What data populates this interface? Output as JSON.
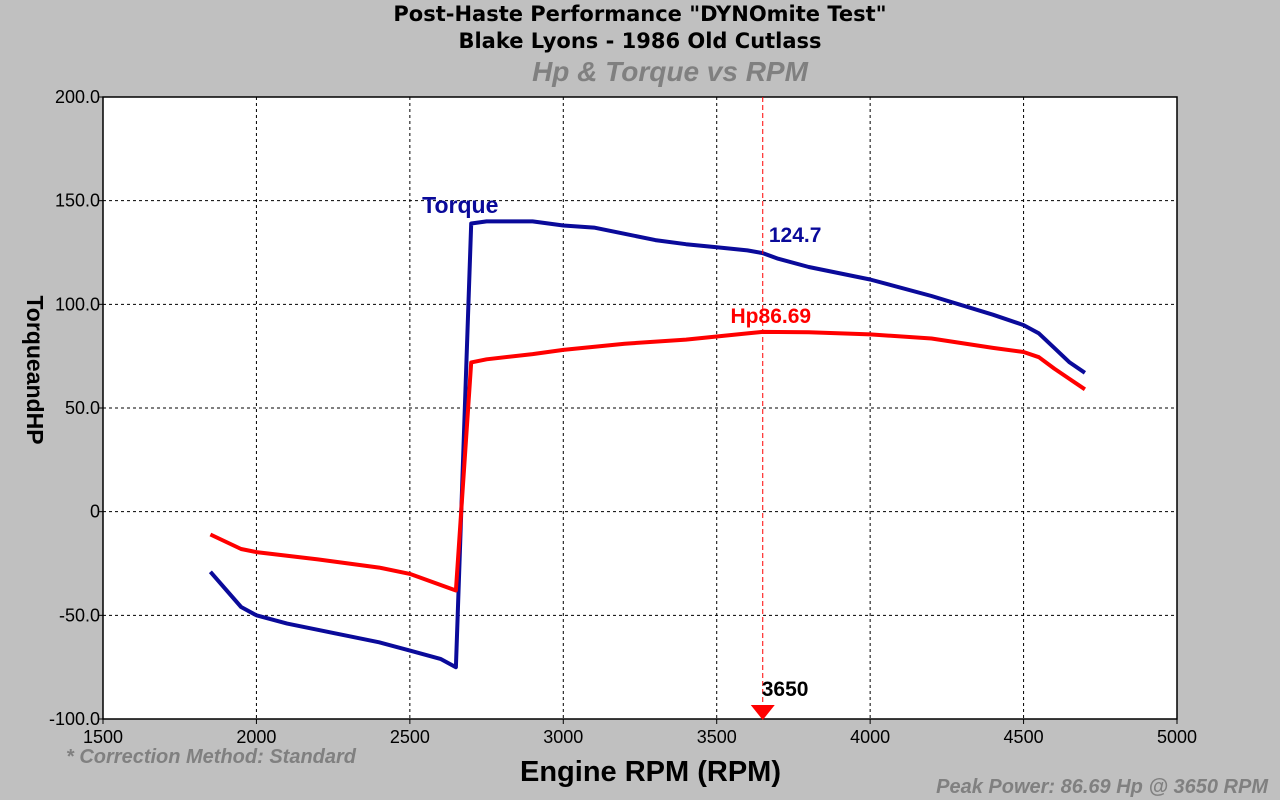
{
  "header": {
    "title_line1": "Post-Haste Performance \"DYNOmite Test\"",
    "title_line2": "Blake Lyons - 1986 Old Cutlass",
    "subtitle": "Hp & Torque vs RPM"
  },
  "footer": {
    "correction_note": "* Correction Method: Standard",
    "x_axis_title": "Engine RPM (RPM)",
    "peak_power_note": "Peak Power: 86.69 Hp @ 3650 RPM"
  },
  "chart_data": {
    "type": "line",
    "xlabel": "Engine RPM (RPM)",
    "ylabel": "TorqueandHP",
    "xlim": [
      1500,
      5000
    ],
    "ylim": [
      -100,
      200
    ],
    "x_ticks": [
      "1500",
      "2000",
      "2500",
      "3000",
      "3500",
      "4000",
      "4500",
      "5000"
    ],
    "y_ticks": [
      "200.0",
      "150.0",
      "100.0",
      "50.0",
      "0",
      "-50.0",
      "-100.0"
    ],
    "grid": true,
    "series": [
      {
        "name": "Torque",
        "color": "#0a0a9a",
        "points": [
          [
            1850,
            -29
          ],
          [
            1950,
            -46
          ],
          [
            2000,
            -50
          ],
          [
            2100,
            -54
          ],
          [
            2200,
            -57
          ],
          [
            2300,
            -60
          ],
          [
            2400,
            -63
          ],
          [
            2500,
            -67
          ],
          [
            2600,
            -71
          ],
          [
            2650,
            -75
          ],
          [
            2700,
            139
          ],
          [
            2750,
            140
          ],
          [
            2900,
            140
          ],
          [
            3000,
            138
          ],
          [
            3100,
            137
          ],
          [
            3200,
            134
          ],
          [
            3300,
            131
          ],
          [
            3400,
            129
          ],
          [
            3500,
            127.5
          ],
          [
            3600,
            126
          ],
          [
            3650,
            124.7
          ],
          [
            3700,
            122
          ],
          [
            3800,
            118
          ],
          [
            4000,
            112
          ],
          [
            4200,
            104
          ],
          [
            4400,
            95
          ],
          [
            4500,
            90
          ],
          [
            4550,
            86
          ],
          [
            4600,
            79
          ],
          [
            4650,
            72
          ],
          [
            4700,
            67
          ]
        ]
      },
      {
        "name": "Hp",
        "color": "#ff0000",
        "points": [
          [
            1850,
            -11
          ],
          [
            1950,
            -18
          ],
          [
            2000,
            -19.5
          ],
          [
            2200,
            -23
          ],
          [
            2400,
            -27
          ],
          [
            2500,
            -30
          ],
          [
            2650,
            -38
          ],
          [
            2700,
            72
          ],
          [
            2750,
            73.5
          ],
          [
            2900,
            76
          ],
          [
            3000,
            78
          ],
          [
            3200,
            81
          ],
          [
            3400,
            83
          ],
          [
            3600,
            86
          ],
          [
            3650,
            86.69
          ],
          [
            3800,
            86.5
          ],
          [
            4000,
            85.5
          ],
          [
            4200,
            83.5
          ],
          [
            4400,
            79
          ],
          [
            4500,
            77
          ],
          [
            4550,
            74.5
          ],
          [
            4600,
            69
          ],
          [
            4650,
            64
          ],
          [
            4700,
            59
          ]
        ]
      }
    ],
    "annotations": {
      "torque_label": "Torque",
      "torque_value_label": "124.7",
      "hp_label": "Hp86.69",
      "cursor_rpm": 3650,
      "cursor_label": "3650"
    }
  }
}
